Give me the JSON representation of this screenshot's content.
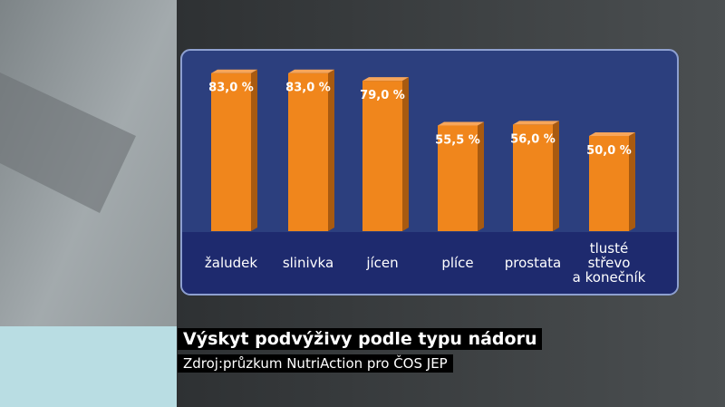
{
  "chart_data": {
    "type": "bar",
    "title": "Výskyt podvýživy podle typu nádoru",
    "source": "Zdroj:průzkum NutriAction pro ČOS JEP",
    "categories": [
      "žaludek",
      "slinivka",
      "jícen",
      "plíce",
      "prostata",
      "tlusté\nstřevo\na konečník"
    ],
    "values": [
      83.0,
      83.0,
      79.0,
      55.5,
      56.0,
      50.0
    ],
    "value_labels": [
      "83,0 %",
      "83,0 %",
      "79,0 %",
      "55,5 %",
      "56,0 %",
      "50,0 %"
    ],
    "color": "#f0861c"
  }
}
